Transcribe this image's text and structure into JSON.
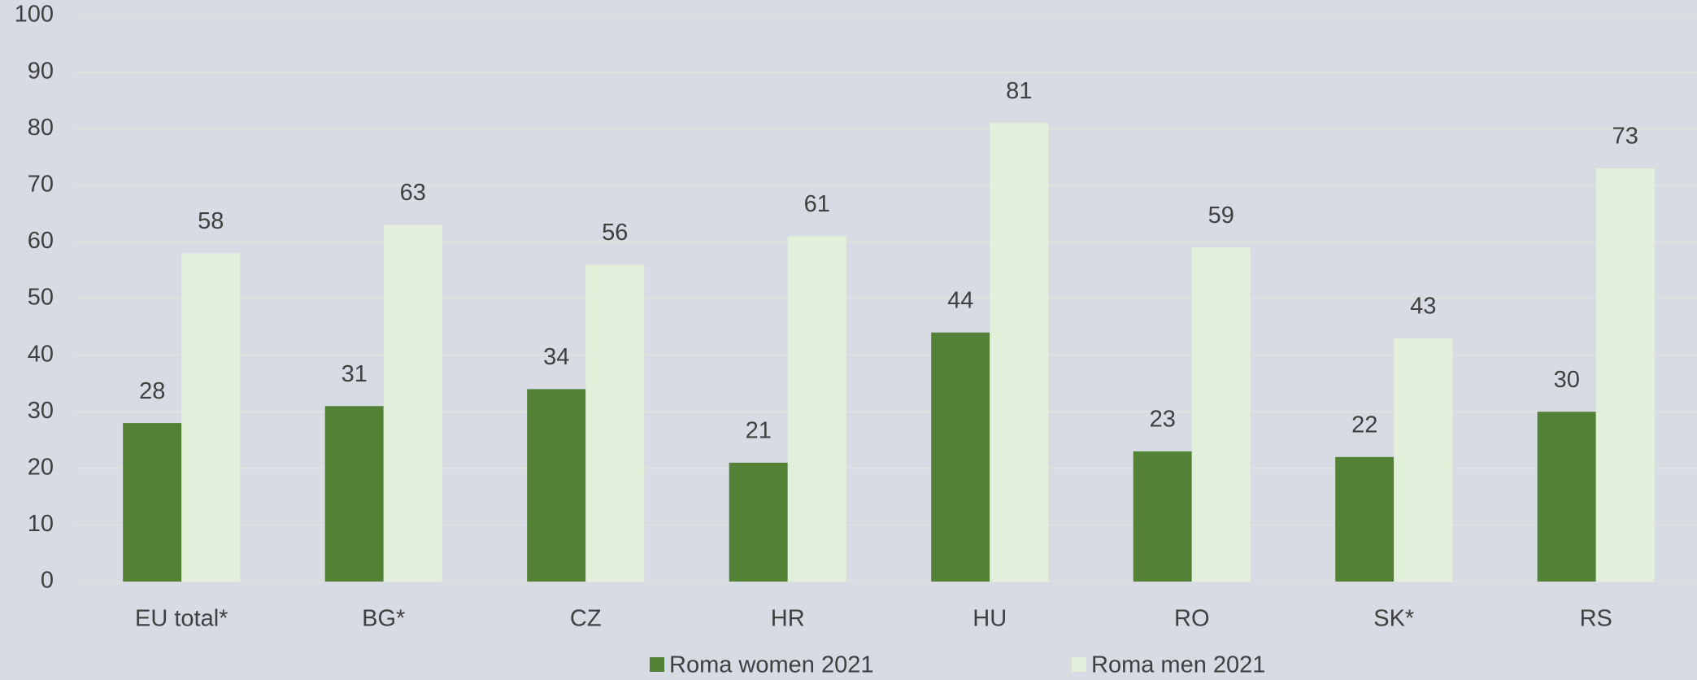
{
  "chart_data": {
    "type": "bar",
    "categories": [
      "EU total*",
      "BG*",
      "CZ",
      "HR",
      "HU",
      "RO",
      "SK*",
      "RS"
    ],
    "series": [
      {
        "name": "Roma women 2021",
        "color": "#538135",
        "values": [
          28,
          31,
          34,
          21,
          44,
          23,
          22,
          30
        ]
      },
      {
        "name": "Roma men 2021",
        "color": "#e2efda",
        "values": [
          58,
          63,
          56,
          61,
          81,
          59,
          43,
          73
        ]
      }
    ],
    "ylim": [
      0,
      100
    ],
    "yticks": [
      0,
      10,
      20,
      30,
      40,
      50,
      60,
      70,
      80,
      90,
      100
    ],
    "grid": true,
    "legend": "bottom"
  }
}
